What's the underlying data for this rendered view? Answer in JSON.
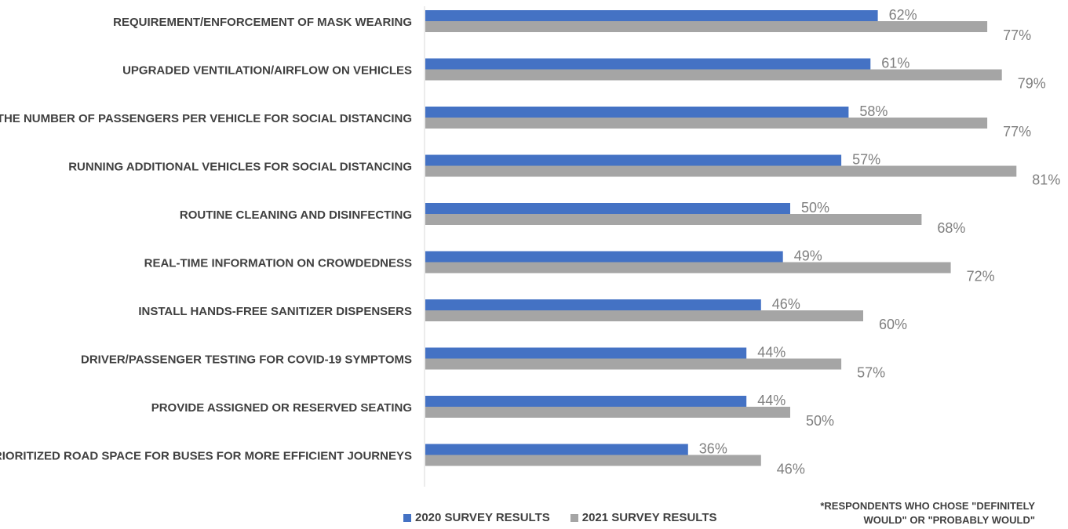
{
  "chart_data": {
    "type": "bar",
    "orientation": "horizontal",
    "categories": [
      "REQUIREMENT/ENFORCEMENT OF MASK WEARING",
      "UPGRADED VENTILATION/AIRFLOW ON VEHICLES",
      "LIMIT THE NUMBER OF PASSENGERS PER VEHICLE FOR SOCIAL DISTANCING",
      "RUNNING ADDITIONAL VEHICLES FOR SOCIAL DISTANCING",
      "ROUTINE CLEANING AND DISINFECTING",
      "REAL-TIME INFORMATION ON CROWDEDNESS",
      "INSTALL HANDS-FREE SANITIZER DISPENSERS",
      "DRIVER/PASSENGER TESTING FOR COVID-19 SYMPTOMS",
      "PROVIDE ASSIGNED OR RESERVED SEATING",
      "PRIORITIZED ROAD SPACE FOR BUSES FOR MORE EFFICIENT JOURNEYS"
    ],
    "series": [
      {
        "name": "2020 SURVEY RESULTS",
        "color": "#4472c4",
        "values": [
          62,
          61,
          58,
          57,
          50,
          49,
          46,
          44,
          44,
          36
        ]
      },
      {
        "name": "2021 SURVEY RESULTS",
        "color": "#a5a5a5",
        "values": [
          77,
          79,
          77,
          81,
          68,
          72,
          60,
          57,
          50,
          46
        ]
      }
    ],
    "value_suffix": "%",
    "xlim": [
      0,
      100
    ],
    "grid": false,
    "legend_position": "bottom",
    "title": "",
    "xlabel": "",
    "ylabel": ""
  },
  "footnote": {
    "line1": "*RESPONDENTS WHO CHOSE \"DEFINITELY",
    "line2": "WOULD\" OR \"PROBABLY WOULD\""
  }
}
